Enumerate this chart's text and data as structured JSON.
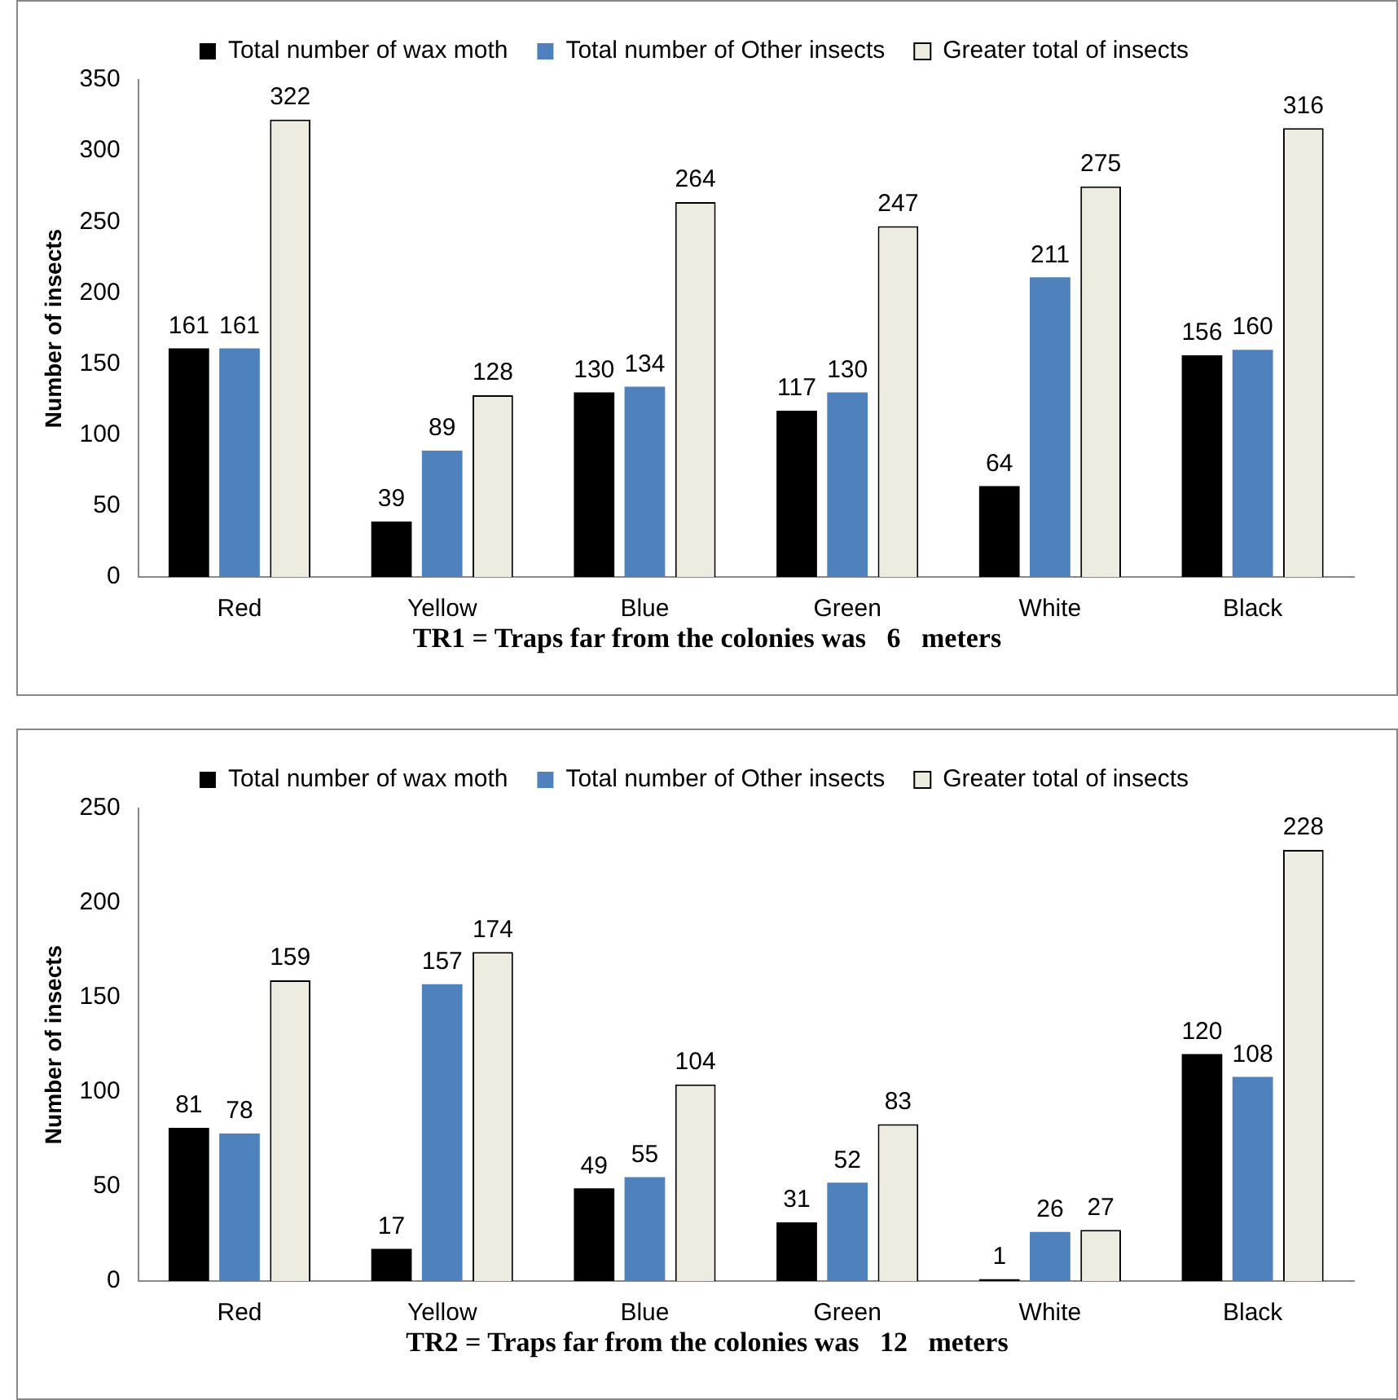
{
  "chart_data": [
    {
      "type": "bar",
      "ylabel": "Number of insects",
      "categories": [
        "Red",
        "Yellow",
        "Blue",
        "Green",
        "White",
        "Black"
      ],
      "series": [
        {
          "name": "Total number of wax moth",
          "color": "#000000",
          "values": [
            161,
            39,
            130,
            117,
            64,
            156
          ]
        },
        {
          "name": "Total number of Other insects",
          "color": "#4f81bd",
          "values": [
            161,
            89,
            134,
            130,
            211,
            160
          ]
        },
        {
          "name": "Greater total of insects",
          "color": "#eeece1",
          "values": [
            322,
            128,
            264,
            247,
            275,
            316
          ]
        }
      ],
      "ylim": [
        0,
        350
      ],
      "yticks": [
        0,
        50,
        100,
        150,
        200,
        250,
        300,
        350
      ],
      "grid": false,
      "legend": "top",
      "data_labels": true,
      "annotations": [
        "TR1 = Traps far from the colonies was   6   meters"
      ]
    },
    {
      "type": "bar",
      "ylabel": "Number of insects",
      "categories": [
        "Red",
        "Yellow",
        "Blue",
        "Green",
        "White",
        "Black"
      ],
      "series": [
        {
          "name": "Total number of wax moth",
          "color": "#000000",
          "values": [
            81,
            17,
            49,
            31,
            1,
            120
          ]
        },
        {
          "name": "Total number of Other insects",
          "color": "#4f81bd",
          "values": [
            78,
            157,
            55,
            52,
            26,
            108
          ]
        },
        {
          "name": "Greater total of insects",
          "color": "#eeece1",
          "values": [
            159,
            174,
            104,
            83,
            27,
            228
          ]
        }
      ],
      "ylim": [
        0,
        250
      ],
      "yticks": [
        0,
        50,
        100,
        150,
        200,
        250
      ],
      "grid": false,
      "legend": "top",
      "data_labels": true,
      "annotations": [
        "TR2 = Traps far from the colonies was   12   meters"
      ]
    }
  ]
}
